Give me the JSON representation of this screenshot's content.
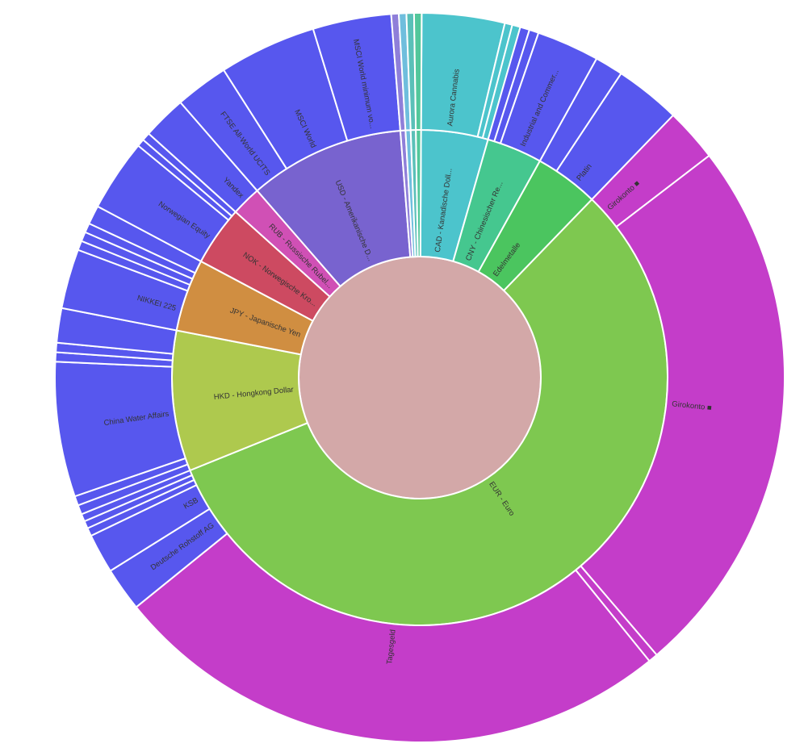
{
  "page": {
    "background_color": "#ffffff",
    "title": ""
  },
  "chart_data": {
    "type": "sunburst",
    "title": "",
    "legend": null,
    "grid": false,
    "angle_unit": "degrees_clockwise_from_12_oclock",
    "levels": [
      "currency_or_category",
      "asset_or_account"
    ],
    "center": {
      "color": "#d3a8a8"
    },
    "gap_color": "#ffffff",
    "palette": {
      "equity_blue": "#5757ee",
      "cash_magenta": "#c43dc9",
      "eur_green": "#7ec850",
      "hkd_yellow_green": "#aec94e",
      "jpy_orange": "#d08e41",
      "nok_red": "#cd4a61",
      "rub_pink": "#d050b5",
      "usd_purple": "#7863cf",
      "cad_teal": "#4cc4cc",
      "cny_teal_green": "#45c78f",
      "metals_green": "#4bc55f"
    },
    "segments": [
      {
        "level": 1,
        "label": "CAD - Kanadische Doll...",
        "color": "#4cc4cc",
        "start": 0.3,
        "end": 16
      },
      {
        "level": 1,
        "label": "CNY - Chinesischer Re...",
        "color": "#45c78f",
        "start": 16,
        "end": 29
      },
      {
        "level": 1,
        "label": "Edelmetalle",
        "color": "#4bc55f",
        "start": 29,
        "end": 44
      },
      {
        "level": 1,
        "label": "EUR - Euro",
        "color": "#7ec850",
        "start": 44,
        "end": 248
      },
      {
        "level": 1,
        "label": "HKD - Hongkong Dollar",
        "color": "#aec94e",
        "start": 248,
        "end": 281
      },
      {
        "level": 1,
        "label": "JPY - Japanische Yen",
        "color": "#d08e41",
        "start": 281,
        "end": 298
      },
      {
        "level": 1,
        "label": "NOK - Norwegische Kro...",
        "color": "#cd4a61",
        "start": 298,
        "end": 312
      },
      {
        "level": 1,
        "label": "RUB - Russische Rubel...",
        "color": "#d050b5",
        "start": 312,
        "end": 319
      },
      {
        "level": 1,
        "label": "USD - Amerikanische D...",
        "color": "#7863cf",
        "start": 319,
        "end": 355.5
      },
      {
        "level": 1,
        "label": "",
        "color": "#8f7fd9",
        "start": 355.5,
        "end": 356.7
      },
      {
        "level": 1,
        "label": "",
        "color": "#6fbedd",
        "start": 356.7,
        "end": 357.9
      },
      {
        "level": 1,
        "label": "",
        "color": "#5ac0b8",
        "start": 357.9,
        "end": 359.1
      },
      {
        "level": 1,
        "label": "",
        "color": "#52c79b",
        "start": 359.1,
        "end": 0.3
      },
      {
        "level": 2,
        "parent": "CAD - Kanadische Doll...",
        "label": "Aurora Cannabis",
        "color": "#4cc4cc",
        "start": 0.3,
        "end": 13.5
      },
      {
        "level": 2,
        "parent": "CAD - Kanadische Doll...",
        "label": "",
        "color": "#4cc4cc",
        "start": 13.5,
        "end": 14.7
      },
      {
        "level": 2,
        "parent": "CAD - Kanadische Doll...",
        "label": "",
        "color": "#4cc4cc",
        "start": 14.7,
        "end": 16
      },
      {
        "level": 2,
        "parent": "CNY - Chinesischer Re...",
        "label": "",
        "color": "#5757ee",
        "start": 16,
        "end": 17.5
      },
      {
        "level": 2,
        "parent": "CNY - Chinesischer Re...",
        "label": "",
        "color": "#5757ee",
        "start": 17.5,
        "end": 19
      },
      {
        "level": 2,
        "parent": "CNY - Chinesischer Re...",
        "label": "Industrial and Commer...",
        "color": "#5757ee",
        "start": 19,
        "end": 29
      },
      {
        "level": 2,
        "parent": "Edelmetalle",
        "label": "",
        "color": "#5757ee",
        "start": 29,
        "end": 33.5
      },
      {
        "level": 2,
        "parent": "Edelmetalle",
        "label": "Platin",
        "color": "#5757ee",
        "start": 33.5,
        "end": 44
      },
      {
        "level": 2,
        "parent": "EUR - Euro",
        "label": "Girokonto",
        "icon_name": "black-emblem-icon",
        "icon_char": "■",
        "color": "#c43dc9",
        "start": 44,
        "end": 52.5
      },
      {
        "level": 2,
        "parent": "EUR - Euro",
        "label": "Girokonto",
        "icon_name": "black-emblem-icon",
        "icon_char": "■",
        "color": "#c43dc9",
        "start": 52.5,
        "end": 139.5
      },
      {
        "level": 2,
        "parent": "EUR - Euro",
        "label": "",
        "color": "#c43dc9",
        "start": 139.5,
        "end": 141
      },
      {
        "level": 2,
        "parent": "EUR - Euro",
        "label": "Tagesgeld",
        "color": "#c43dc9",
        "start": 141,
        "end": 231
      },
      {
        "level": 2,
        "parent": "EUR - Euro",
        "label": "Deutsche Rohstoff AG",
        "color": "#5757ee",
        "start": 231,
        "end": 238
      },
      {
        "level": 2,
        "parent": "EUR - Euro",
        "label": "KSB",
        "color": "#5757ee",
        "start": 238,
        "end": 244.3
      },
      {
        "level": 2,
        "parent": "EUR - Euro",
        "label": "",
        "color": "#5757ee",
        "start": 244.3,
        "end": 245.6
      },
      {
        "level": 2,
        "parent": "EUR - Euro",
        "label": "",
        "color": "#5757ee",
        "start": 245.6,
        "end": 246.8
      },
      {
        "level": 2,
        "parent": "EUR - Euro",
        "label": "",
        "color": "#5757ee",
        "start": 246.8,
        "end": 248
      },
      {
        "level": 2,
        "parent": "HKD - Hongkong Dollar",
        "label": "",
        "color": "#5757ee",
        "start": 248,
        "end": 249.5
      },
      {
        "level": 2,
        "parent": "HKD - Hongkong Dollar",
        "label": "",
        "color": "#5757ee",
        "start": 249.5,
        "end": 251
      },
      {
        "level": 2,
        "parent": "HKD - Hongkong Dollar",
        "label": "China Water Affairs",
        "color": "#5757ee",
        "start": 251,
        "end": 272.5
      },
      {
        "level": 2,
        "parent": "HKD - Hongkong Dollar",
        "label": "",
        "color": "#5757ee",
        "start": 272.5,
        "end": 274
      },
      {
        "level": 2,
        "parent": "HKD - Hongkong Dollar",
        "label": "",
        "color": "#5757ee",
        "start": 274,
        "end": 275.5
      },
      {
        "level": 2,
        "parent": "HKD - Hongkong Dollar",
        "label": "",
        "color": "#5757ee",
        "start": 275.5,
        "end": 281
      },
      {
        "level": 2,
        "parent": "JPY - Japanische Yen",
        "label": "NIKKEI 225",
        "color": "#5757ee",
        "start": 281,
        "end": 290.5
      },
      {
        "level": 2,
        "parent": "JPY - Japanische Yen",
        "label": "",
        "color": "#5757ee",
        "start": 290.5,
        "end": 292
      },
      {
        "level": 2,
        "parent": "JPY - Japanische Yen",
        "label": "",
        "color": "#5757ee",
        "start": 292,
        "end": 293.5
      },
      {
        "level": 2,
        "parent": "JPY - Japanische Yen",
        "label": "",
        "color": "#5757ee",
        "start": 293.5,
        "end": 295
      },
      {
        "level": 2,
        "parent": "JPY - Japanische Yen",
        "label": "",
        "color": "#5757ee",
        "start": 295,
        "end": 298
      },
      {
        "level": 2,
        "parent": "NOK - Norwegische Kro...",
        "label": "Norwegian Equity",
        "color": "#5757ee",
        "start": 298,
        "end": 309.5
      },
      {
        "level": 2,
        "parent": "NOK - Norwegische Kro...",
        "label": "",
        "color": "#5757ee",
        "start": 309.5,
        "end": 310.7
      },
      {
        "level": 2,
        "parent": "NOK - Norwegische Kro...",
        "label": "",
        "color": "#5757ee",
        "start": 310.7,
        "end": 312
      },
      {
        "level": 2,
        "parent": "RUB - Russische Rubel...",
        "label": "Yandex",
        "color": "#5757ee",
        "start": 312,
        "end": 319
      },
      {
        "level": 2,
        "parent": "USD - Amerikanische D...",
        "label": "FTSE All-World UCITS",
        "color": "#5757ee",
        "start": 319,
        "end": 327.5
      },
      {
        "level": 2,
        "parent": "USD - Amerikanische D...",
        "label": "MSCI World",
        "color": "#5757ee",
        "start": 327.5,
        "end": 343
      },
      {
        "level": 2,
        "parent": "USD - Amerikanische D...",
        "label": "MSCI World minimum vo...",
        "color": "#5757ee",
        "start": 343,
        "end": 355.5
      },
      {
        "level": 2,
        "parent": "",
        "label": "",
        "color": "#8f7fd9",
        "start": 355.5,
        "end": 356.7
      },
      {
        "level": 2,
        "parent": "",
        "label": "",
        "color": "#6fbedd",
        "start": 356.7,
        "end": 357.9
      },
      {
        "level": 2,
        "parent": "",
        "label": "",
        "color": "#5ac0b8",
        "start": 357.9,
        "end": 359.1
      },
      {
        "level": 2,
        "parent": "",
        "label": "",
        "color": "#52c79b",
        "start": 359.1,
        "end": 0.3
      }
    ]
  }
}
